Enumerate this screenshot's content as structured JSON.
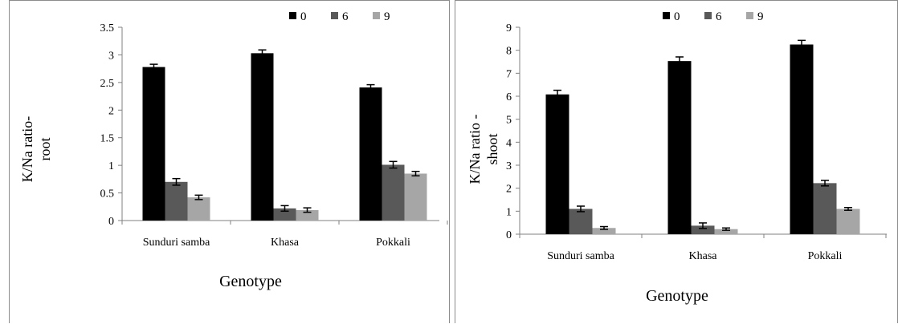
{
  "chart_data": [
    {
      "type": "bar",
      "categories": [
        "Sunduri samba",
        "Khasa",
        "Pokkali"
      ],
      "series": [
        {
          "name": "0",
          "values": [
            2.78,
            3.03,
            2.41
          ],
          "errors": [
            0.05,
            0.06,
            0.05
          ],
          "color": "#000000"
        },
        {
          "name": "6",
          "values": [
            0.7,
            0.22,
            1.01
          ],
          "errors": [
            0.06,
            0.05,
            0.06
          ],
          "color": "#595959"
        },
        {
          "name": "9",
          "values": [
            0.42,
            0.19,
            0.85
          ],
          "errors": [
            0.04,
            0.04,
            0.04
          ],
          "color": "#a6a6a6"
        }
      ],
      "xlabel": "Genotype",
      "ylabel_lines": [
        "K/Na ratio-",
        "root"
      ],
      "ylim": [
        0,
        3.5
      ],
      "yticks": [
        "0",
        "0.5",
        "1",
        "1.5",
        "2",
        "2.5",
        "3",
        "3.5"
      ],
      "legend": "top-right",
      "grid": false
    },
    {
      "type": "bar",
      "categories": [
        "Sunduri samba",
        "Khasa",
        "Pokkali"
      ],
      "series": [
        {
          "name": "0",
          "values": [
            6.08,
            7.53,
            8.25
          ],
          "errors": [
            0.18,
            0.18,
            0.18
          ],
          "color": "#000000"
        },
        {
          "name": "6",
          "values": [
            1.1,
            0.37,
            2.22
          ],
          "errors": [
            0.12,
            0.12,
            0.12
          ],
          "color": "#595959"
        },
        {
          "name": "9",
          "values": [
            0.27,
            0.22,
            1.1
          ],
          "errors": [
            0.06,
            0.05,
            0.06
          ],
          "color": "#a6a6a6"
        }
      ],
      "xlabel": "Genotype",
      "ylabel_lines": [
        "K/Na ratio -",
        "shoot"
      ],
      "ylim": [
        0,
        9
      ],
      "yticks": [
        "0",
        "1",
        "2",
        "3",
        "4",
        "5",
        "6",
        "7",
        "8",
        "9"
      ],
      "legend": "top-right",
      "grid": false
    }
  ]
}
